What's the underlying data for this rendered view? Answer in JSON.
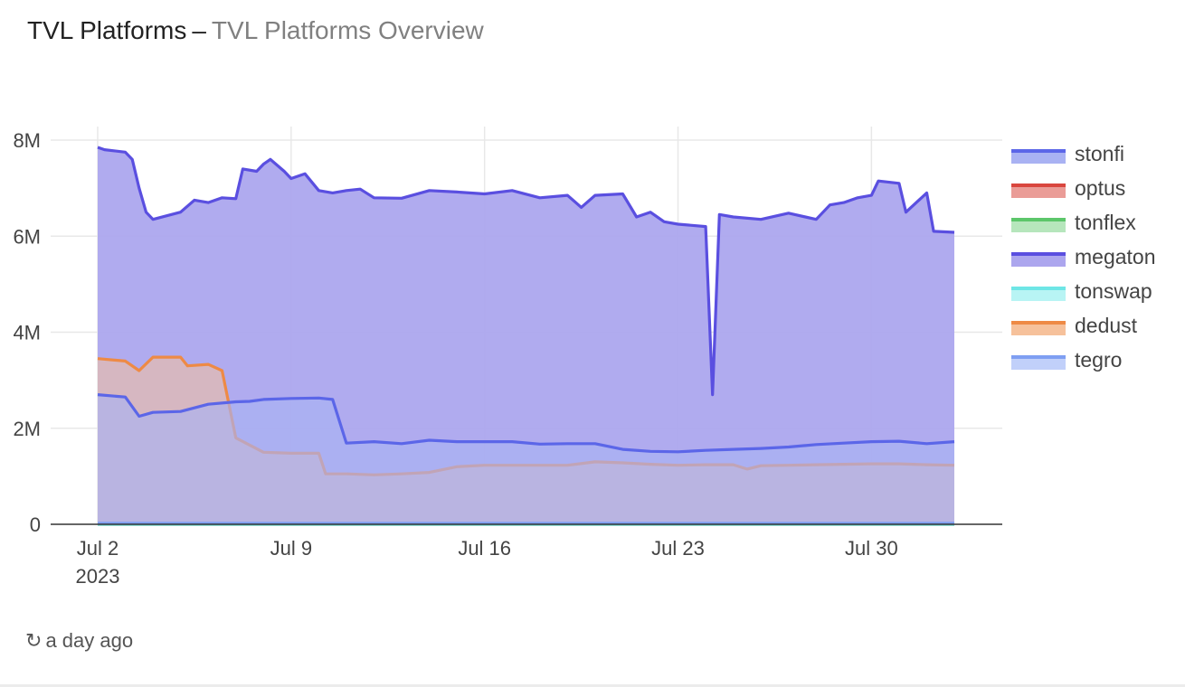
{
  "header": {
    "title": "TVL Platforms",
    "separator": "–",
    "subtitle": "TVL Platforms Overview"
  },
  "footer": {
    "refresh_icon": "refresh-icon",
    "updated": "a day ago"
  },
  "chart_data": {
    "type": "area",
    "title": "TVL Platforms",
    "xlabel": "",
    "ylabel": "",
    "ylim": [
      0,
      8000000
    ],
    "y_ticks": [
      0,
      2000000,
      4000000,
      6000000,
      8000000
    ],
    "y_tick_labels": [
      "0",
      "2M",
      "4M",
      "6M",
      "8M"
    ],
    "x_ticks": [
      "2023-07-02",
      "2023-07-09",
      "2023-07-16",
      "2023-07-23",
      "2023-07-30"
    ],
    "x_tick_labels": [
      "Jul 2\n2023",
      "Jul 9",
      "Jul 16",
      "Jul 23",
      "Jul 30"
    ],
    "xlim": [
      "2023-07-02",
      "2023-08-02"
    ],
    "stacked": true,
    "grid": true,
    "legend": "right",
    "series": [
      {
        "name": "stonfi",
        "color": "#5b66e8",
        "fill": "#a9b2f3",
        "points": [
          [
            "2023-07-02",
            2700000
          ],
          [
            "2023-07-03",
            2650000
          ],
          [
            "2023-07-03 12:00",
            2250000
          ],
          [
            "2023-07-04",
            2330000
          ],
          [
            "2023-07-05",
            2350000
          ],
          [
            "2023-07-06",
            2500000
          ],
          [
            "2023-07-07",
            2550000
          ],
          [
            "2023-07-07 12:00",
            2560000
          ],
          [
            "2023-07-08",
            2600000
          ],
          [
            "2023-07-09",
            2620000
          ],
          [
            "2023-07-10",
            2630000
          ],
          [
            "2023-07-10 12:00",
            2600000
          ],
          [
            "2023-07-11",
            1690000
          ],
          [
            "2023-07-12",
            1720000
          ],
          [
            "2023-07-13",
            1680000
          ],
          [
            "2023-07-14",
            1750000
          ],
          [
            "2023-07-15",
            1720000
          ],
          [
            "2023-07-16",
            1720000
          ],
          [
            "2023-07-17",
            1720000
          ],
          [
            "2023-07-18",
            1670000
          ],
          [
            "2023-07-19",
            1680000
          ],
          [
            "2023-07-20",
            1680000
          ],
          [
            "2023-07-21",
            1560000
          ],
          [
            "2023-07-22",
            1520000
          ],
          [
            "2023-07-23",
            1510000
          ],
          [
            "2023-07-24",
            1540000
          ],
          [
            "2023-07-25",
            1560000
          ],
          [
            "2023-07-26",
            1580000
          ],
          [
            "2023-07-27",
            1610000
          ],
          [
            "2023-07-28",
            1660000
          ],
          [
            "2023-07-29",
            1690000
          ],
          [
            "2023-07-30",
            1720000
          ],
          [
            "2023-07-31",
            1730000
          ],
          [
            "2023-08-01",
            1680000
          ],
          [
            "2023-08-02",
            1720000
          ]
        ]
      },
      {
        "name": "optus",
        "color": "#d9463e",
        "fill": "#ea9c97",
        "points": [
          [
            "2023-07-02",
            0
          ],
          [
            "2023-08-02",
            0
          ]
        ]
      },
      {
        "name": "tonflex",
        "color": "#5cc66a",
        "fill": "#b6e6bc",
        "points": [
          [
            "2023-07-02",
            0
          ],
          [
            "2023-08-02",
            0
          ]
        ]
      },
      {
        "name": "megaton",
        "color": "#5a4fe0",
        "fill": "#aca6ee",
        "points": [
          [
            "2023-07-02",
            7850000
          ],
          [
            "2023-07-02 06:00",
            7800000
          ],
          [
            "2023-07-03",
            7750000
          ],
          [
            "2023-07-03 06:00",
            7600000
          ],
          [
            "2023-07-03 12:00",
            7000000
          ],
          [
            "2023-07-03 18:00",
            6500000
          ],
          [
            "2023-07-04",
            6350000
          ],
          [
            "2023-07-05",
            6500000
          ],
          [
            "2023-07-05 12:00",
            6750000
          ],
          [
            "2023-07-06",
            6700000
          ],
          [
            "2023-07-06 12:00",
            6800000
          ],
          [
            "2023-07-07",
            6780000
          ],
          [
            "2023-07-07 06:00",
            7400000
          ],
          [
            "2023-07-07 18:00",
            7350000
          ],
          [
            "2023-07-08",
            7500000
          ],
          [
            "2023-07-08 06:00",
            7600000
          ],
          [
            "2023-07-08 18:00",
            7350000
          ],
          [
            "2023-07-09",
            7200000
          ],
          [
            "2023-07-09 12:00",
            7300000
          ],
          [
            "2023-07-10",
            6950000
          ],
          [
            "2023-07-10 12:00",
            6900000
          ],
          [
            "2023-07-11",
            6950000
          ],
          [
            "2023-07-11 12:00",
            6980000
          ],
          [
            "2023-07-12",
            6800000
          ],
          [
            "2023-07-13",
            6790000
          ],
          [
            "2023-07-14",
            6950000
          ],
          [
            "2023-07-15",
            6920000
          ],
          [
            "2023-07-16",
            6880000
          ],
          [
            "2023-07-17",
            6950000
          ],
          [
            "2023-07-18",
            6800000
          ],
          [
            "2023-07-19",
            6850000
          ],
          [
            "2023-07-19 12:00",
            6600000
          ],
          [
            "2023-07-20",
            6850000
          ],
          [
            "2023-07-21",
            6880000
          ],
          [
            "2023-07-21 12:00",
            6400000
          ],
          [
            "2023-07-22",
            6500000
          ],
          [
            "2023-07-22 12:00",
            6300000
          ],
          [
            "2023-07-23",
            6250000
          ],
          [
            "2023-07-24",
            6200000
          ],
          [
            "2023-07-24 06:00",
            2700000
          ],
          [
            "2023-07-24 12:00",
            6450000
          ],
          [
            "2023-07-25",
            6400000
          ],
          [
            "2023-07-26",
            6350000
          ],
          [
            "2023-07-27",
            6480000
          ],
          [
            "2023-07-28",
            6350000
          ],
          [
            "2023-07-28 12:00",
            6650000
          ],
          [
            "2023-07-29",
            6700000
          ],
          [
            "2023-07-29 12:00",
            6800000
          ],
          [
            "2023-07-30",
            6850000
          ],
          [
            "2023-07-30 06:00",
            7150000
          ],
          [
            "2023-07-31",
            7100000
          ],
          [
            "2023-07-31 06:00",
            6500000
          ],
          [
            "2023-08-01",
            6900000
          ],
          [
            "2023-08-01 06:00",
            6100000
          ],
          [
            "2023-08-02",
            6080000
          ]
        ]
      },
      {
        "name": "tonswap",
        "color": "#6ee6e6",
        "fill": "#b8f4f4",
        "points": [
          [
            "2023-07-02",
            0
          ],
          [
            "2023-08-02",
            0
          ]
        ]
      },
      {
        "name": "dedust",
        "color": "#ee8a45",
        "fill": "#f6c19b",
        "points": [
          [
            "2023-07-02",
            3450000
          ],
          [
            "2023-07-03",
            3400000
          ],
          [
            "2023-07-03 12:00",
            3200000
          ],
          [
            "2023-07-04",
            3480000
          ],
          [
            "2023-07-05",
            3480000
          ],
          [
            "2023-07-05 06:00",
            3300000
          ],
          [
            "2023-07-06",
            3330000
          ],
          [
            "2023-07-06 12:00",
            3200000
          ],
          [
            "2023-07-07",
            1800000
          ],
          [
            "2023-07-08",
            1500000
          ],
          [
            "2023-07-09",
            1480000
          ],
          [
            "2023-07-10",
            1480000
          ],
          [
            "2023-07-10 06:00",
            1050000
          ],
          [
            "2023-07-11",
            1050000
          ],
          [
            "2023-07-12",
            1030000
          ],
          [
            "2023-07-13",
            1050000
          ],
          [
            "2023-07-14",
            1080000
          ],
          [
            "2023-07-15",
            1200000
          ],
          [
            "2023-07-16",
            1230000
          ],
          [
            "2023-07-17",
            1230000
          ],
          [
            "2023-07-18",
            1230000
          ],
          [
            "2023-07-19",
            1230000
          ],
          [
            "2023-07-20",
            1300000
          ],
          [
            "2023-07-21",
            1280000
          ],
          [
            "2023-07-22",
            1250000
          ],
          [
            "2023-07-23",
            1230000
          ],
          [
            "2023-07-24",
            1240000
          ],
          [
            "2023-07-25",
            1240000
          ],
          [
            "2023-07-25 12:00",
            1150000
          ],
          [
            "2023-07-26",
            1220000
          ],
          [
            "2023-07-27",
            1230000
          ],
          [
            "2023-07-28",
            1240000
          ],
          [
            "2023-07-29",
            1250000
          ],
          [
            "2023-07-30",
            1260000
          ],
          [
            "2023-07-31",
            1260000
          ],
          [
            "2023-08-01",
            1240000
          ],
          [
            "2023-08-02",
            1230000
          ]
        ]
      },
      {
        "name": "tegro",
        "color": "#7f9ff2",
        "fill": "#c1d0fa",
        "points": [
          [
            "2023-07-02",
            20000
          ],
          [
            "2023-08-02",
            20000
          ]
        ]
      }
    ]
  }
}
